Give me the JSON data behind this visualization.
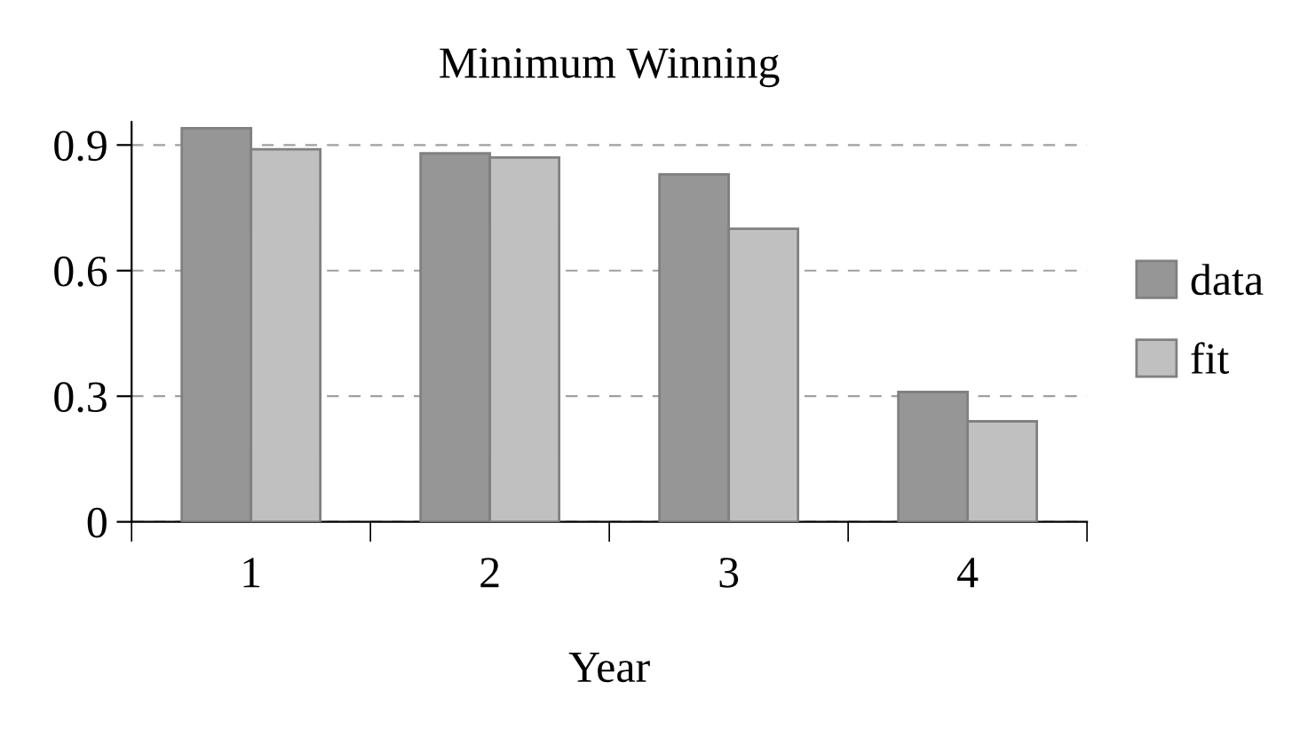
{
  "chart_data": {
    "type": "bar",
    "title": "Minimum Winning",
    "xlabel": "Year",
    "categories": [
      "1",
      "2",
      "3",
      "4"
    ],
    "series": [
      {
        "name": "data",
        "color": "#969696",
        "values": [
          0.94,
          0.88,
          0.83,
          0.31
        ]
      },
      {
        "name": "fit",
        "color": "#c0c0c0",
        "values": [
          0.89,
          0.87,
          0.7,
          0.24
        ]
      }
    ],
    "ylim": [
      0,
      0.955
    ],
    "yticks": [
      0,
      0.3,
      0.6,
      0.9
    ],
    "grid": "y",
    "legend": "right"
  }
}
